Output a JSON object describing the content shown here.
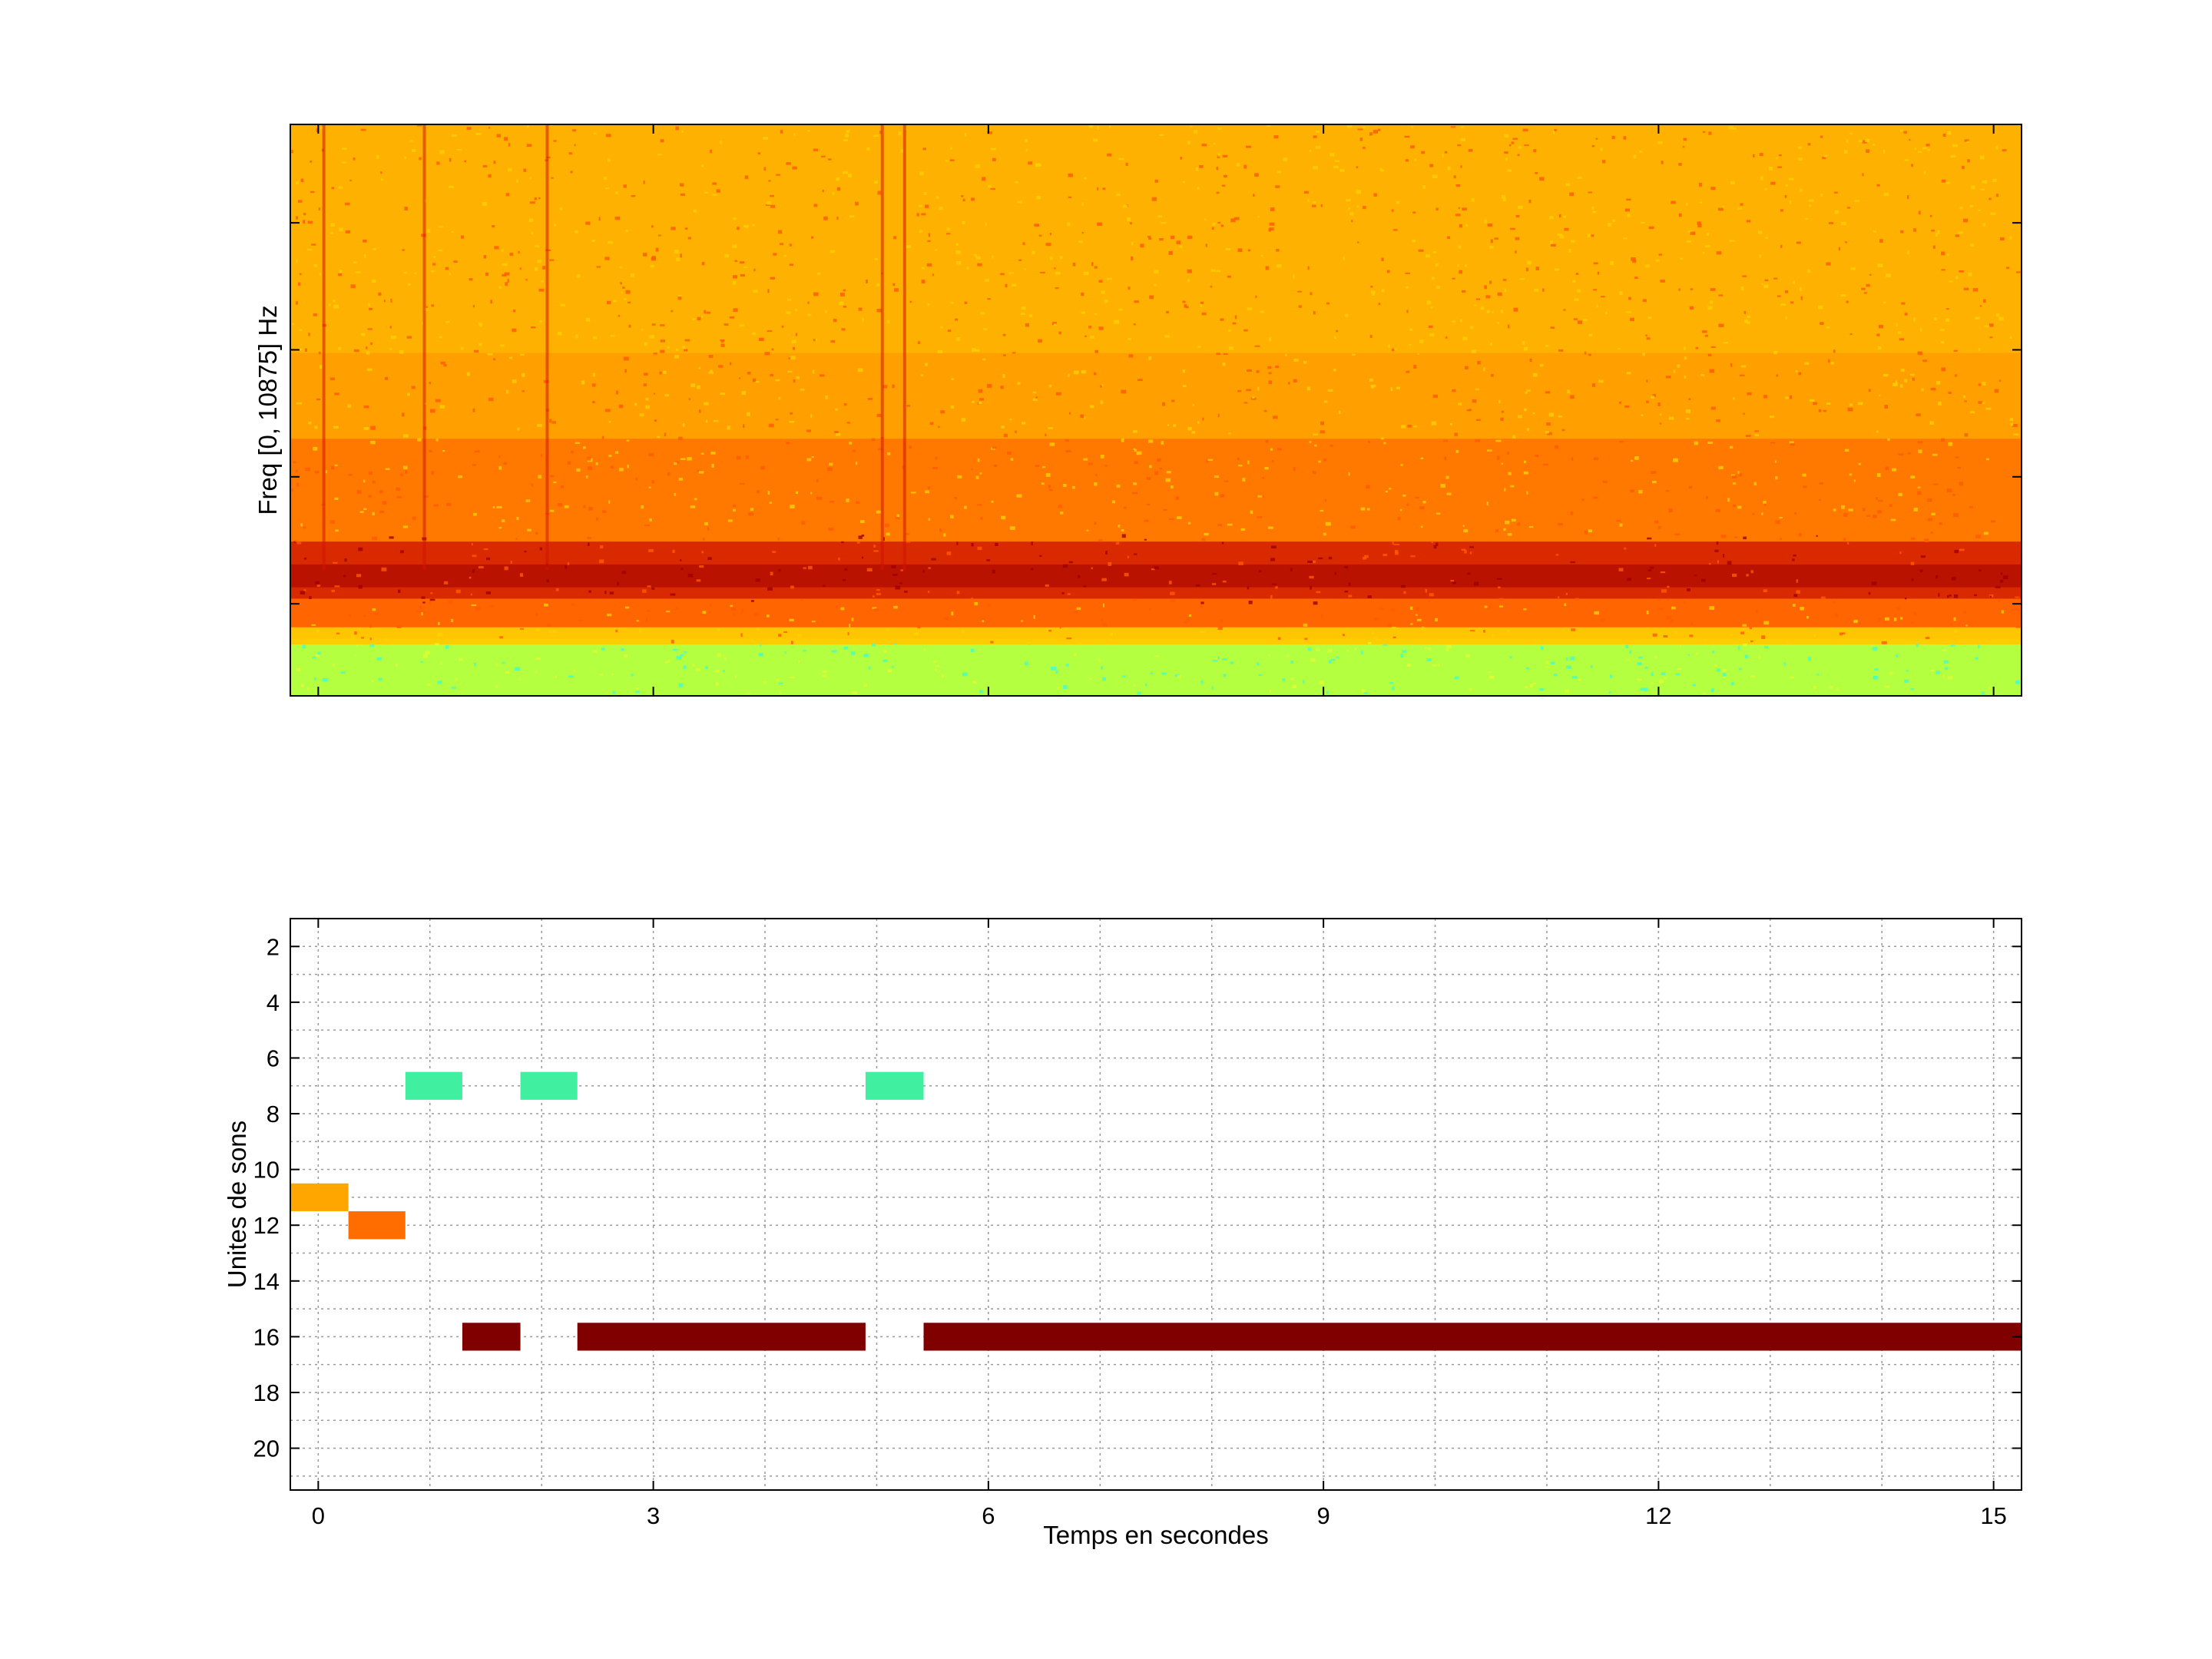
{
  "chart_data": [
    {
      "type": "heatmap",
      "title": "",
      "xlabel": "",
      "ylabel": "Freq [0, 10875] Hz",
      "xlim": [
        -0.25,
        15.25
      ],
      "ylim": [
        0,
        10875
      ],
      "x_tick_values": [
        0,
        3,
        6,
        9,
        12,
        15
      ],
      "colormap": "jet",
      "band_colors": {
        "background": "#ffa000",
        "background_hi": "#ffd000",
        "mid_band": "#ff5a00",
        "strong_band": "#d21400",
        "strong_band_dark": "#a00000",
        "low_band": "#b4ff40",
        "low_band_cyan": "#40ffd0"
      },
      "vertical_streak_times": [
        0.05,
        0.95,
        2.05,
        5.05,
        5.25
      ]
    },
    {
      "type": "bar",
      "orientation": "horizontal-segments",
      "title": "",
      "xlabel": "Temps en secondes",
      "ylabel": "Unites de sons",
      "xlim": [
        -0.25,
        15.25
      ],
      "ylim": [
        1,
        21.5
      ],
      "y_reversed": true,
      "grid": true,
      "x_ticks": [
        "0",
        "3",
        "6",
        "9",
        "12",
        "15"
      ],
      "x_tick_values": [
        0,
        3,
        6,
        9,
        12,
        15
      ],
      "y_ticks": [
        "2",
        "4",
        "6",
        "8",
        "10",
        "12",
        "14",
        "16",
        "18",
        "20"
      ],
      "y_tick_values": [
        2,
        4,
        6,
        8,
        10,
        12,
        14,
        16,
        18,
        20
      ],
      "segments": [
        {
          "unit": 11,
          "start": -0.25,
          "end": 0.27,
          "color": "#ffa600"
        },
        {
          "unit": 12,
          "start": 0.27,
          "end": 0.78,
          "color": "#ff6d00"
        },
        {
          "unit": 7,
          "start": 0.78,
          "end": 1.29,
          "color": "#40f0a0"
        },
        {
          "unit": 16,
          "start": 1.29,
          "end": 1.81,
          "color": "#800000"
        },
        {
          "unit": 7,
          "start": 1.81,
          "end": 2.32,
          "color": "#40f0a0"
        },
        {
          "unit": 16,
          "start": 2.32,
          "end": 4.9,
          "color": "#800000"
        },
        {
          "unit": 7,
          "start": 4.9,
          "end": 5.42,
          "color": "#40f0a0"
        },
        {
          "unit": 16,
          "start": 5.42,
          "end": 15.25,
          "color": "#800000"
        }
      ]
    }
  ]
}
